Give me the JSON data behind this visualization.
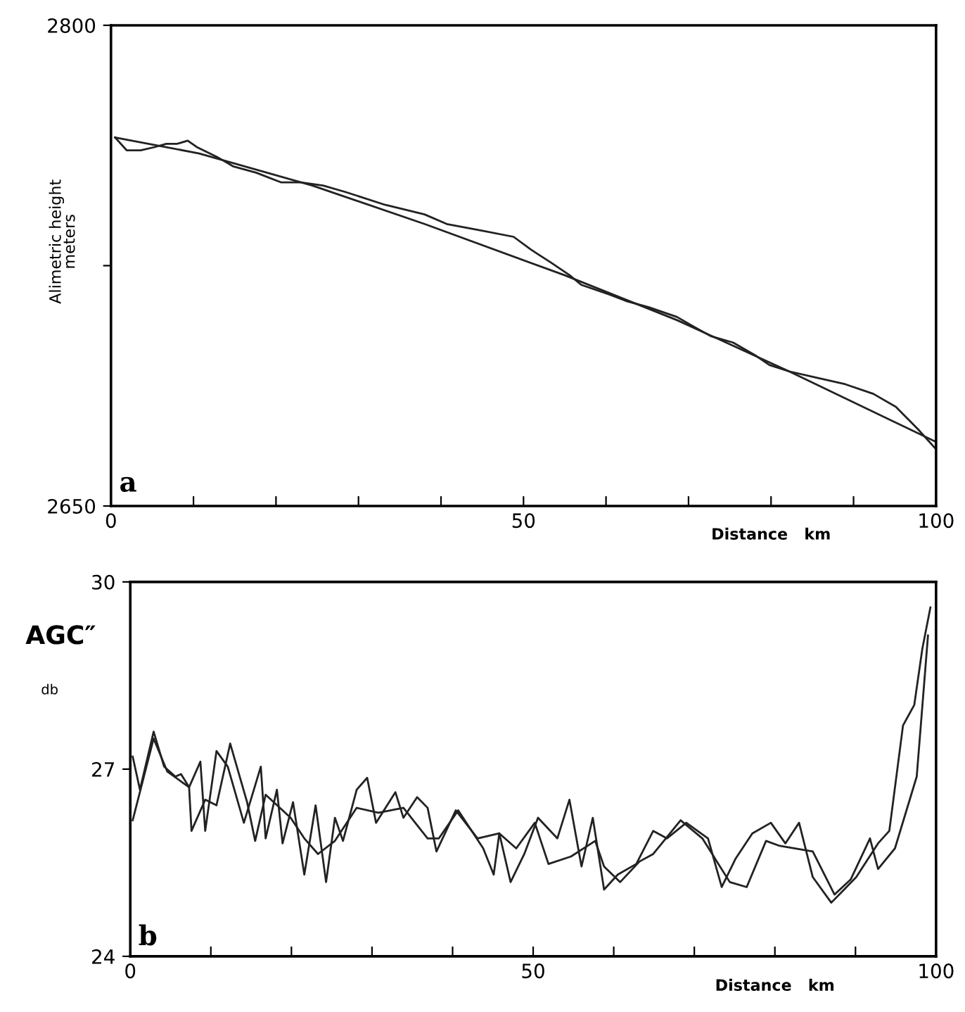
{
  "chart_data": [
    {
      "type": "line",
      "xlabel": "Distance   km",
      "ylabel": "Alimetric height\nmeters",
      "annotations": [
        "a"
      ],
      "xlim": [
        0,
        100
      ],
      "ylim": [
        2650,
        2800
      ],
      "xticks": [
        0,
        {
          "value": 10,
          "label": null
        },
        {
          "value": 20,
          "label": null
        },
        {
          "value": 30,
          "label": null
        },
        {
          "value": 40,
          "label": null
        },
        50,
        {
          "value": 60,
          "label": null
        },
        {
          "value": 70,
          "label": null
        },
        {
          "value": 80,
          "label": null
        },
        {
          "value": 90,
          "label": null
        },
        100
      ],
      "yticks": [
        2650,
        {
          "value": 2725,
          "label": null
        },
        2800
      ],
      "grid": false,
      "legend": false,
      "marker": "none",
      "line_style": "solid",
      "series": [
        {
          "color": "#222222",
          "x": [
            0.5,
            1.9,
            3.6,
            5.3,
            6.7,
            8.0,
            9.3,
            10.4,
            12.8,
            14.8,
            17.6,
            20.6,
            23.0,
            25.7,
            28.4,
            33.2,
            38.0,
            40.7,
            44.8,
            48.8,
            50.9,
            53.3,
            55.6,
            57.0,
            60.4,
            62.4,
            65.2,
            68.6,
            70.6,
            72.7,
            75.4,
            78.1,
            79.8,
            82.2,
            85.6,
            89.0,
            92.4,
            95.1,
            97.8,
            99.9
          ],
          "values": [
            2765,
            2761,
            2761,
            2762,
            2763,
            2763,
            2764,
            2762,
            2759,
            2756,
            2754,
            2751,
            2751,
            2750,
            2748,
            2744,
            2741,
            2738,
            2736,
            2734,
            2730,
            2726,
            2722,
            2719,
            2716,
            2714,
            2712,
            2709,
            2706,
            2703,
            2701,
            2697,
            2694,
            2692,
            2690,
            2688,
            2685,
            2681,
            2674,
            2668
          ]
        },
        {
          "color": "#222222",
          "x": [
            0.5,
            10.7,
            24.4,
            38.0,
            55.0,
            68.6,
            82.2,
            100
          ],
          "values": [
            2765,
            2760,
            2750,
            2738,
            2722,
            2708,
            2692,
            2670
          ]
        }
      ]
    },
    {
      "type": "line",
      "xlabel": "Distance   km",
      "ylabel": "AGC″",
      "annotations": [
        "db",
        "b"
      ],
      "xlim": [
        0,
        100
      ],
      "ylim": [
        24,
        30
      ],
      "xticks": [
        0,
        {
          "value": 10,
          "label": null
        },
        {
          "value": 20,
          "label": null
        },
        {
          "value": 30,
          "label": null
        },
        {
          "value": 40,
          "label": null
        },
        50,
        {
          "value": 60,
          "label": null
        },
        {
          "value": 70,
          "label": null
        },
        {
          "value": 80,
          "label": null
        },
        {
          "value": 90,
          "label": null
        },
        100
      ],
      "yticks": [
        24,
        27,
        30
      ],
      "grid": false,
      "legend": false,
      "marker": "none",
      "line_style": "solid",
      "series": [
        {
          "color": "#222222",
          "x": [
            0.3,
            1.2,
            2.9,
            4.2,
            5.6,
            6.3,
            7.3,
            8.7,
            9.3,
            10.7,
            12.1,
            14.1,
            16.2,
            16.8,
            18.2,
            18.9,
            20.2,
            21.6,
            23.0,
            24.3,
            25.4,
            26.4,
            28.1,
            29.4,
            30.5,
            32.9,
            33.9,
            35.6,
            36.9,
            38.0,
            40.4,
            43.1,
            45.8,
            47.2,
            48.9,
            50.6,
            53.0,
            54.5,
            56.0,
            57.4,
            58.8,
            60.5,
            62.8,
            64.9,
            66.6,
            69.0,
            71.7,
            73.4,
            75.1,
            77.2,
            79.5,
            81.3,
            83.0,
            84.7,
            87.0,
            90.1,
            92.8,
            94.2,
            95.9,
            97.3,
            98.3,
            99.3
          ],
          "values": [
            27.2,
            26.67,
            27.6,
            27.04,
            26.88,
            26.92,
            26.71,
            27.12,
            26.01,
            27.29,
            27.04,
            26.14,
            27.04,
            25.89,
            26.67,
            25.81,
            26.47,
            25.31,
            26.42,
            25.19,
            26.22,
            25.85,
            26.67,
            26.86,
            26.14,
            26.63,
            26.22,
            26.55,
            26.38,
            25.68,
            26.34,
            25.89,
            25.97,
            25.19,
            25.64,
            26.22,
            25.89,
            26.51,
            25.44,
            26.22,
            25.07,
            25.31,
            25.48,
            26.01,
            25.89,
            26.14,
            25.89,
            25.11,
            25.56,
            25.97,
            26.14,
            25.81,
            26.14,
            25.27,
            24.86,
            25.27,
            25.81,
            26.01,
            27.7,
            28.03,
            28.93,
            29.59
          ]
        },
        {
          "color": "#222222",
          "x": [
            0.3,
            2.9,
            4.6,
            7.3,
            7.6,
            9.3,
            10.7,
            12.4,
            14.5,
            15.5,
            16.8,
            19.9,
            21.6,
            23.3,
            25.4,
            28.1,
            30.8,
            33.9,
            36.9,
            38.3,
            40.7,
            43.8,
            45.1,
            45.8,
            47.9,
            50.2,
            51.9,
            54.7,
            57.7,
            58.8,
            60.8,
            63.2,
            64.9,
            68.3,
            71.0,
            74.4,
            76.5,
            78.9,
            80.6,
            84.7,
            87.4,
            89.4,
            91.8,
            92.8,
            94.9,
            97.6,
            99.0
          ],
          "values": [
            26.18,
            27.49,
            26.96,
            26.71,
            26.01,
            26.51,
            26.42,
            27.41,
            26.47,
            25.85,
            26.59,
            26.22,
            25.89,
            25.64,
            25.85,
            26.38,
            26.3,
            26.38,
            25.89,
            25.89,
            26.34,
            25.73,
            25.31,
            25.97,
            25.73,
            26.14,
            25.48,
            25.6,
            25.85,
            25.44,
            25.19,
            25.52,
            25.64,
            26.18,
            25.89,
            25.19,
            25.11,
            25.85,
            25.77,
            25.68,
            24.99,
            25.23,
            25.89,
            25.4,
            25.73,
            26.88,
            29.14
          ]
        }
      ]
    }
  ]
}
